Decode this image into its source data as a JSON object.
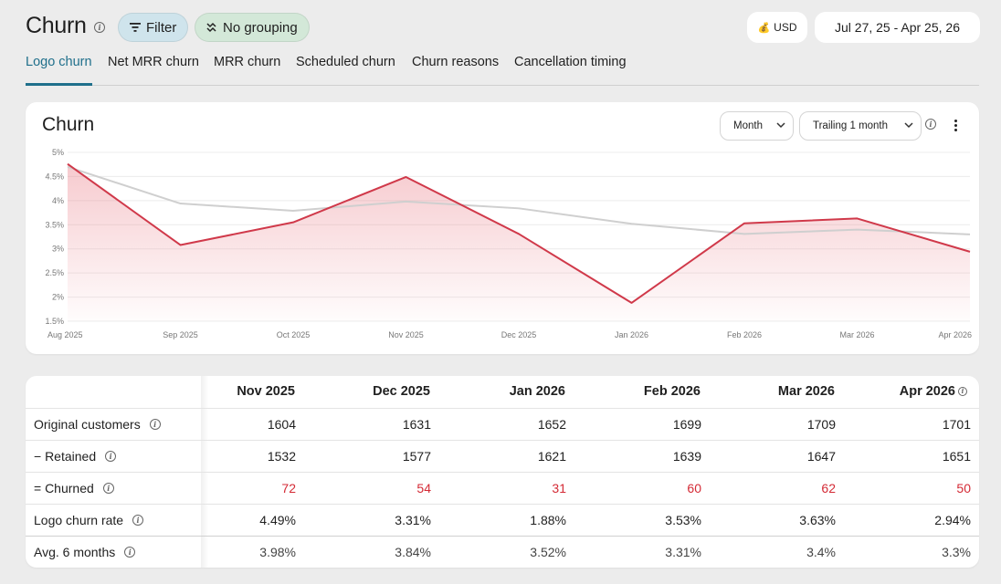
{
  "header": {
    "title": "Churn",
    "filter_label": "Filter",
    "grouping_label": "No grouping",
    "currency_label": "USD",
    "date_range": "Jul 27, 25 - Apr 25, 26"
  },
  "tabs": [
    {
      "label": "Logo churn",
      "active": true
    },
    {
      "label": "Net MRR churn",
      "active": false
    },
    {
      "label": "MRR churn",
      "active": false
    },
    {
      "label": "Scheduled churn",
      "active": false
    },
    {
      "label": "Churn reasons",
      "active": false
    },
    {
      "label": "Cancellation timing",
      "active": false
    }
  ],
  "chart_card": {
    "title": "Churn",
    "period_select": "Month",
    "trailing_select": "Trailing 1 month"
  },
  "chart_data": {
    "type": "area",
    "x": [
      "Aug 2025",
      "Sep 2025",
      "Oct 2025",
      "Nov 2025",
      "Dec 2025",
      "Jan 2026",
      "Feb 2026",
      "Mar 2026",
      "Apr 2026"
    ],
    "y_ticks": [
      "5%",
      "4.5%",
      "4%",
      "3.5%",
      "3%",
      "2.5%",
      "2%",
      "1.5%"
    ],
    "ylim": [
      1.5,
      5
    ],
    "grid": true,
    "series": [
      {
        "values": [
          4.76,
          3.08,
          3.55,
          4.49,
          3.31,
          1.88,
          3.53,
          3.63,
          2.94
        ],
        "color": "#d0394a",
        "fill": true
      },
      {
        "values": [
          4.7,
          3.94,
          3.79,
          3.98,
          3.84,
          3.52,
          3.31,
          3.4,
          3.3
        ],
        "color": "#cfcfcf",
        "fill": false
      }
    ]
  },
  "table": {
    "columns": [
      "Nov 2025",
      "Dec 2025",
      "Jan 2026",
      "Feb 2026",
      "Mar 2026",
      "Apr 2026"
    ],
    "rows": [
      {
        "label": "Original customers",
        "values": [
          "1604",
          "1631",
          "1652",
          "1699",
          "1709",
          "1701"
        ]
      },
      {
        "label": "− Retained",
        "values": [
          "1532",
          "1577",
          "1621",
          "1639",
          "1647",
          "1651"
        ]
      },
      {
        "label": "= Churned",
        "values": [
          "72",
          "54",
          "31",
          "60",
          "62",
          "50"
        ]
      },
      {
        "label": "Logo churn rate",
        "values": [
          "4.49%",
          "3.31%",
          "1.88%",
          "3.53%",
          "3.63%",
          "2.94%"
        ]
      },
      {
        "label": "Avg. 6 months",
        "values": [
          "3.98%",
          "3.84%",
          "3.52%",
          "3.31%",
          "3.4%",
          "3.3%"
        ]
      }
    ]
  },
  "colors": {
    "accent": "#1f6f8b",
    "churn_red": "#d42a35"
  },
  "icons": [
    "info-icon",
    "filter-icon",
    "grouping-icon",
    "money-bag-icon",
    "chevron-down-icon",
    "more-vertical-icon"
  ]
}
